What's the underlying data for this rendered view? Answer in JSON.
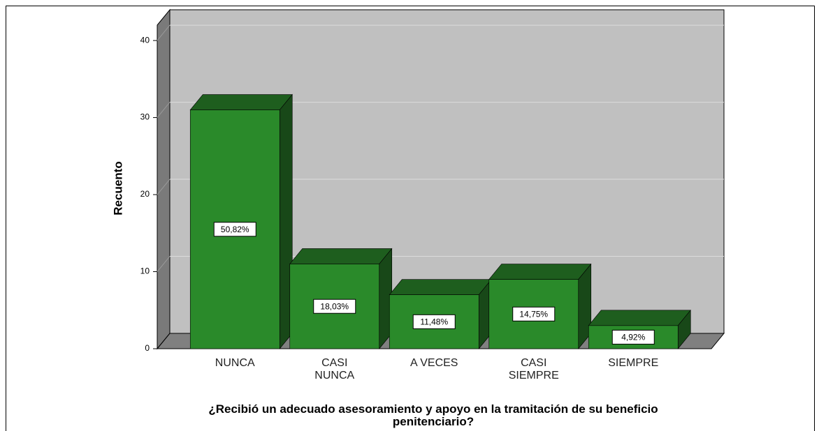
{
  "chart_data": {
    "type": "bar3d",
    "x_label": "¿Recibió un adecuado asesoramiento y apoyo en la tramitación de su beneficio penitenciario?",
    "y_label": "Recuento",
    "categories": [
      "NUNCA",
      "CASI NUNCA",
      "A VECES",
      "CASI SIEMPRE",
      "SIEMPRE"
    ],
    "values": [
      31,
      11,
      7,
      9,
      3
    ],
    "percentages": [
      50.82,
      18.03,
      11.48,
      14.75,
      4.92
    ],
    "percentage_labels": [
      "50,82%",
      "18,03%",
      "11,48%",
      "14,75%",
      "4,92%"
    ],
    "color": "#2a8a2a",
    "ylim": [
      0,
      42
    ],
    "yticks": [
      0,
      10,
      20,
      30,
      40
    ],
    "grid": true
  }
}
